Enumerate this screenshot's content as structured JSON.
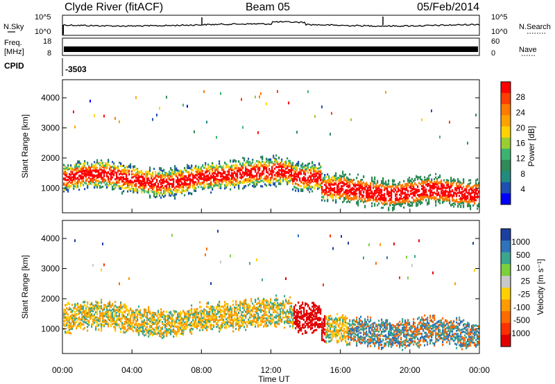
{
  "header": {
    "station": "Clyde River (fitACF)",
    "beam": "Beam 05",
    "date": "05/Feb/2014"
  },
  "strip_labels": {
    "nsky": "N.Sky",
    "nsearch": "N.Search",
    "freq_line1": "Freq.",
    "freq_line2": "[MHz]",
    "nave": "Nave",
    "cpid": "CPID",
    "cpid_value": "-3503"
  },
  "chart_data": [
    {
      "type": "line",
      "name": "noise",
      "left_ticks": [
        "10^5",
        "10^0"
      ],
      "right_ticks": [
        "10^5",
        "10^0"
      ]
    },
    {
      "type": "line",
      "name": "frequency-nave",
      "left_ticks": [
        "18",
        "8"
      ],
      "right_ticks": [
        "60",
        "0"
      ]
    },
    {
      "type": "heatmap",
      "name": "power",
      "ylabel": "Slant Range [km]",
      "ylim": [
        180,
        4600
      ],
      "y_ticks": [
        1000,
        2000,
        3000,
        4000
      ],
      "colorbar_label": "Power [dB]",
      "colorbar_ticks": [
        "28",
        "24",
        "20",
        "16",
        "12",
        "8",
        "4"
      ],
      "colorbar_colors": [
        "#ff0000",
        "#ff3d00",
        "#ff7a00",
        "#ffa200",
        "#ffd200",
        "#9acd32",
        "#3cb371",
        "#2e8b57",
        "#228b80",
        "#1e4fb0",
        "#0000ff"
      ]
    },
    {
      "type": "heatmap",
      "name": "velocity",
      "ylabel": "Slant Range [km]",
      "ylim": [
        180,
        4600
      ],
      "y_ticks": [
        1000,
        2000,
        3000,
        4000
      ],
      "colorbar_label": "Velocity [m s⁻¹]",
      "colorbar_ticks": [
        "1000",
        "500",
        "100",
        "25",
        "-25",
        "-100",
        "-500",
        "-1000"
      ],
      "colorbar_colors": [
        "#1c3fa0",
        "#2f74b8",
        "#3aa68e",
        "#7ccf3c",
        "#c8c8c8",
        "#ffd000",
        "#ff9a00",
        "#ff6a00",
        "#ff3000",
        "#e00000"
      ],
      "xlabel": "Time UT",
      "x_ticks": [
        "00:00",
        "04:00",
        "08:00",
        "12:00",
        "16:00",
        "20:00",
        "00:00"
      ]
    }
  ]
}
